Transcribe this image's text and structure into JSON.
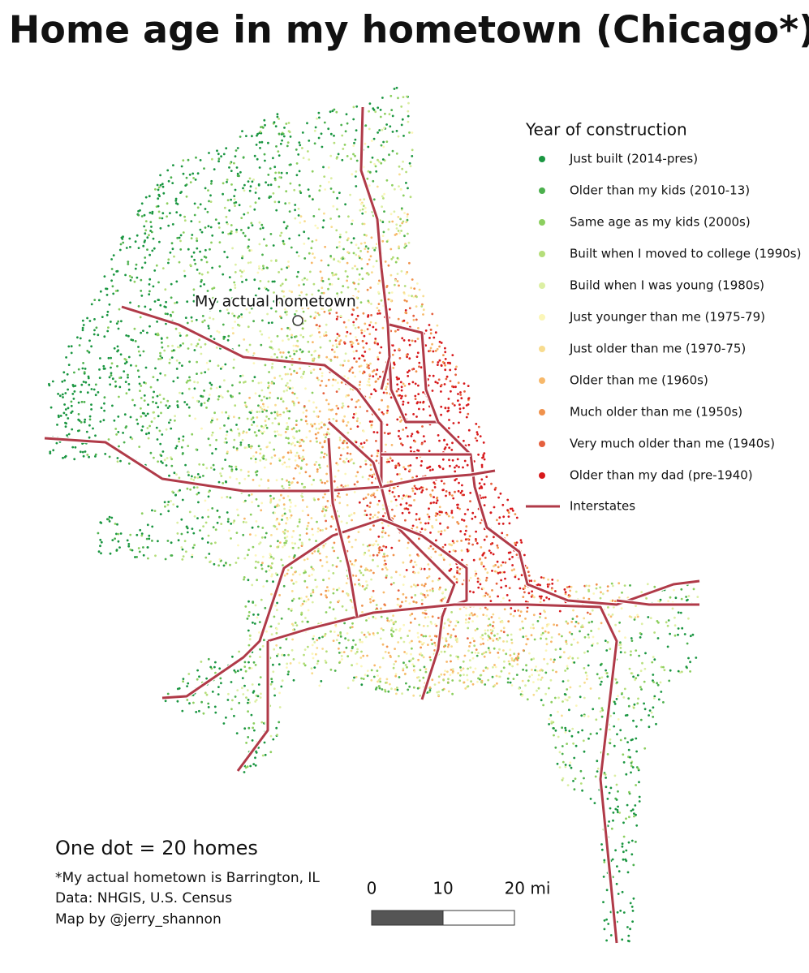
{
  "title": "Home age in my hometown (Chicago*)",
  "legend": {
    "title": "Year of construction",
    "items": [
      {
        "label": "Just built (2014-pres)",
        "color": "#1a9641"
      },
      {
        "label": "Older than my kids (2010-13)",
        "color": "#4cb04d"
      },
      {
        "label": "Same age as my kids (2000s)",
        "color": "#8ccf5f"
      },
      {
        "label": "Built when I moved to college (1990s)",
        "color": "#b5de7a"
      },
      {
        "label": "Build when I was young (1980s)",
        "color": "#dcefa3"
      },
      {
        "label": "Just younger than me (1975-79)",
        "color": "#fbf6b8"
      },
      {
        "label": "Just older than me (1970-75)",
        "color": "#f8dc8f"
      },
      {
        "label": "Older than me (1960s)",
        "color": "#f7b86a"
      },
      {
        "label": "Much older than me (1950s)",
        "color": "#f0924c"
      },
      {
        "label": "Very much older than me (1940s)",
        "color": "#e5603e"
      },
      {
        "label": "Older than my dad (pre-1940)",
        "color": "#d7191c"
      }
    ],
    "line": {
      "label": "Interstates",
      "color": "#b03a48"
    }
  },
  "annotation": "My actual hometown",
  "dot_note": "One dot = 20 homes",
  "footnotes": [
    "*My actual hometown is Barrington, IL",
    "Data: NHGIS, U.S. Census",
    "Map by @jerry_shannon"
  ],
  "scale_bar": {
    "labels": [
      "0",
      "10",
      "20 mi"
    ]
  }
}
